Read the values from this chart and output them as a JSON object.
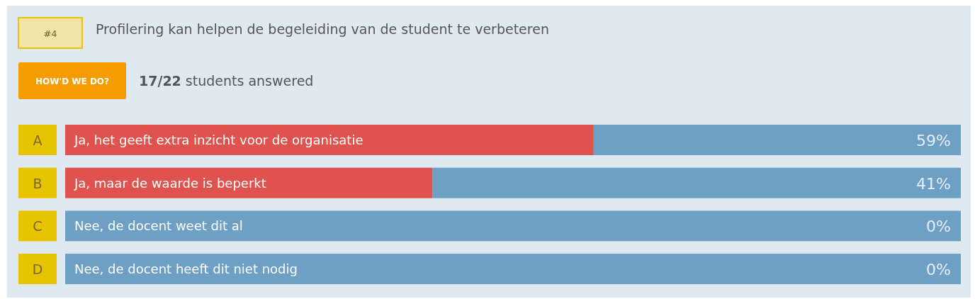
{
  "chart_data": {
    "type": "bar",
    "orientation": "horizontal",
    "title": "Profilering kan helpen de begeleiding van de student te verbeteren",
    "subtitle": "17/22 students answered",
    "categories": [
      "Ja, het geeft extra inzicht voor de organisatie",
      "Ja, maar de waarde is beperkt",
      "Nee, de docent weet dit al",
      "Nee, de docent heeft dit niet nodig"
    ],
    "values": [
      59,
      41,
      0,
      0
    ],
    "value_labels": [
      "59%",
      "41%",
      "0%",
      "0%"
    ],
    "color": "#e0524d",
    "xlim": [
      0,
      100
    ],
    "annotations": [
      "#4",
      "HOW'D WE DO?",
      "A",
      "B",
      "C",
      "D"
    ]
  }
}
